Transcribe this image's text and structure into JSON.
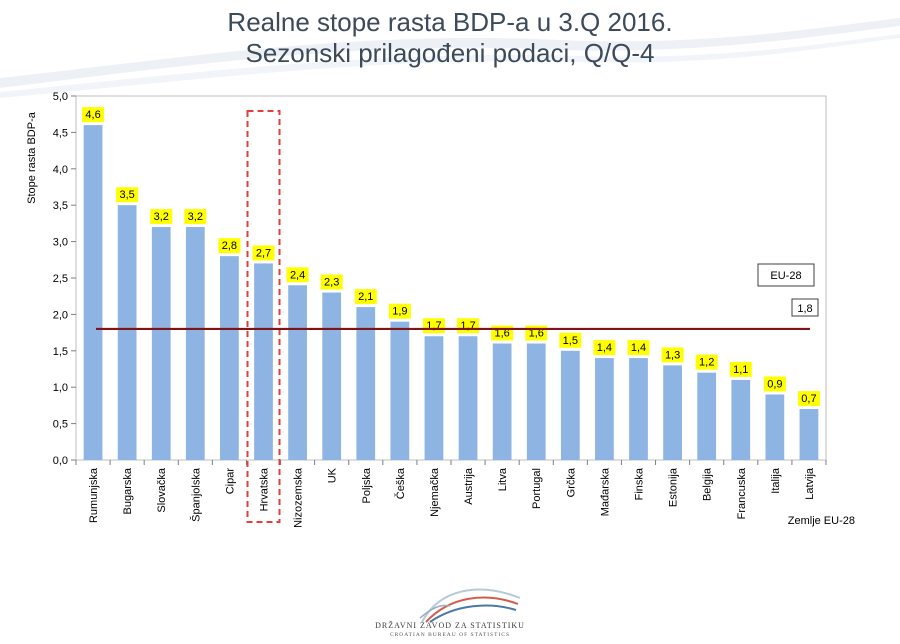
{
  "page": {
    "title_line1": "Realne stope rasta BDP-a u 3.Q 2016.",
    "title_line2": "Sezonski prilagođeni podaci, Q/Q-4"
  },
  "logo": {
    "name_hr": "DRŽAVNI ZAVOD ZA STATISTIKU",
    "name_en": "CROATIAN BUREAU OF STATISTICS"
  },
  "chart_data": {
    "type": "bar",
    "ylabel": "Stope rasta BDP-a",
    "xlabel": "Zemlje EU-28",
    "ylim": [
      0,
      5
    ],
    "ytick_step": 0.5,
    "yticks": [
      "0,0",
      "0,5",
      "1,0",
      "1,5",
      "2,0",
      "2,5",
      "3,0",
      "3,5",
      "4,0",
      "4,5",
      "5,0"
    ],
    "grid": false,
    "categories": [
      "Rumunjska",
      "Bugarska",
      "Slovačka",
      "Španjolska",
      "Cipar",
      "Hrvatska",
      "Nizozemska",
      "UK",
      "Poljska",
      "Češka",
      "Njemačka",
      "Austrija",
      "Litva",
      "Portugal",
      "Grčka",
      "Mađarska",
      "Finska",
      "Estonija",
      "Belgija",
      "Francuska",
      "Italija",
      "Latvija"
    ],
    "values": [
      4.6,
      3.5,
      3.2,
      3.2,
      2.8,
      2.7,
      2.4,
      2.3,
      2.1,
      1.9,
      1.7,
      1.7,
      1.6,
      1.6,
      1.5,
      1.4,
      1.4,
      1.3,
      1.2,
      1.1,
      0.9,
      0.7
    ],
    "value_labels": [
      "4,6",
      "3,5",
      "3,2",
      "3,2",
      "2,8",
      "2,7",
      "2,4",
      "2,3",
      "2,1",
      "1,9",
      "1,7",
      "1,7",
      "1,6",
      "1,6",
      "1,5",
      "1,4",
      "1,4",
      "1,3",
      "1,2",
      "1,1",
      "0,9",
      "0,7"
    ],
    "highlighted_category": "Hrvatska",
    "reference_line": {
      "name": "EU-28",
      "value": 1.8,
      "label": "1,8"
    },
    "colors": {
      "bar": "#8db4e2",
      "label_bg": "#ffff00",
      "ref_line": "#7f1416",
      "highlight_box": "#e0403a",
      "title": "#3c4a5a"
    }
  }
}
